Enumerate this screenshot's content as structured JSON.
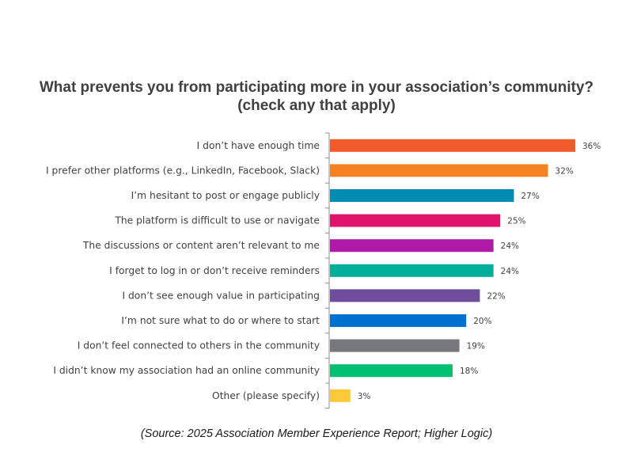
{
  "chart_data": {
    "type": "bar",
    "orientation": "horizontal",
    "title": "What prevents you from participating more in your association’s community?",
    "subtitle": "(check any that apply)",
    "categories": [
      "I don’t have enough time",
      "I prefer other platforms (e.g., LinkedIn, Facebook, Slack)",
      "I’m hesitant to post or engage publicly",
      "The platform is difficult to use or navigate",
      "The discussions or content aren’t relevant to me",
      "I forget to log in or don’t receive reminders",
      "I don’t see enough value in participating",
      "I’m not sure what to do or where to start",
      "I don’t feel connected to others in the community",
      "I didn’t know my association had an online community",
      "Other (please specify)"
    ],
    "values": [
      36,
      32,
      27,
      25,
      24,
      24,
      22,
      20,
      19,
      18,
      3
    ],
    "data_labels": [
      "36%",
      "32%",
      "27%",
      "25%",
      "24%",
      "24%",
      "22%",
      "20%",
      "19%",
      "18%",
      "3%"
    ],
    "colors": [
      "#F15A2B",
      "#F58220",
      "#008BB0",
      "#E0136A",
      "#B01AA8",
      "#00AE9A",
      "#6F4C9C",
      "#0070CE",
      "#77787B",
      "#00BF6F",
      "#FFC839"
    ],
    "xlim": [
      0,
      36
    ],
    "grid": false,
    "legend": "none"
  },
  "source": "(Source: 2025 Association Member Experience Report; Higher Logic)"
}
